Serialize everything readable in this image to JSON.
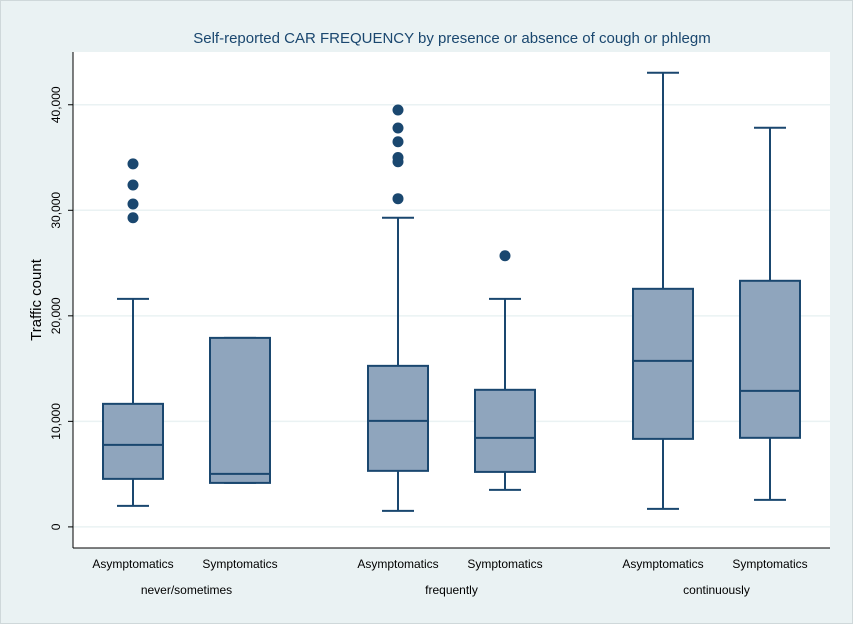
{
  "chart_data": {
    "type": "box",
    "title": "Self-reported CAR FREQUENCY by presence or absence of cough or phlegm",
    "y_label": "Traffic count",
    "groups": [
      "never/sometimes",
      "frequently",
      "continuously"
    ],
    "categories": [
      "Asymptomatics",
      "Symptomatics",
      "Asymptomatics",
      "Symptomatics",
      "Asymptomatics",
      "Symptomatics"
    ],
    "color": "#8fa5bd",
    "line_color": "#1a476f",
    "min": [
      1990,
      4170,
      1520,
      3510,
      1710,
      2560
    ],
    "q1": [
      4550,
      4170,
      5310,
      5210,
      8340,
      8440
    ],
    "median": [
      7770,
      5020,
      10050,
      8440,
      15730,
      12890
    ],
    "q3": [
      11660,
      17910,
      15260,
      12990,
      22560,
      23320
    ],
    "max": [
      21610,
      17910,
      29290,
      21610,
      43030,
      37820
    ],
    "outliers": [
      [
        29290,
        30600,
        32400,
        34400
      ],
      [],
      [
        31100,
        34600,
        35000,
        36500,
        37800,
        39500
      ],
      [
        25690
      ],
      [],
      []
    ],
    "ylim": [
      -2000,
      45000
    ],
    "yticks": [
      0,
      {
        "value": 10000,
        "label": "10,000"
      },
      {
        "value": 20000,
        "label": "20,000"
      },
      {
        "value": 30000,
        "label": "30,000"
      },
      {
        "value": 40000,
        "label": "40,000"
      }
    ],
    "grid": true
  }
}
